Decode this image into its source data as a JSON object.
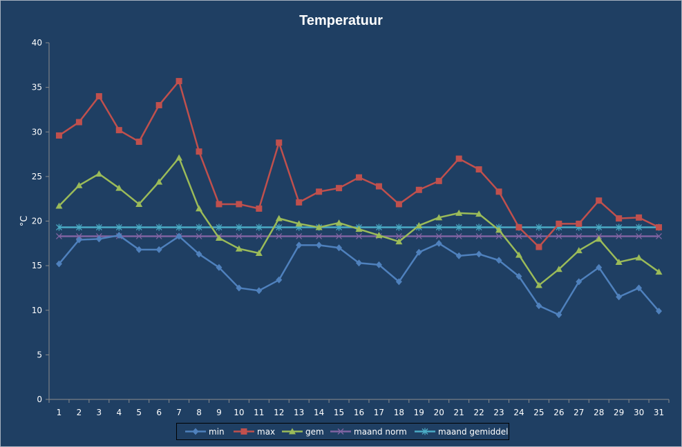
{
  "chart_data": {
    "type": "line",
    "title": "Temperatuur",
    "xlabel": "",
    "ylabel": "°C",
    "ylim": [
      0,
      40
    ],
    "yticks": [
      0,
      5,
      10,
      15,
      20,
      25,
      30,
      35,
      40
    ],
    "x": [
      "1",
      "2",
      "3",
      "4",
      "5",
      "6",
      "7",
      "8",
      "9",
      "10",
      "11",
      "12",
      "13",
      "14",
      "15",
      "16",
      "17",
      "18",
      "19",
      "20",
      "21",
      "22",
      "23",
      "24",
      "25",
      "26",
      "27",
      "28",
      "29",
      "30",
      "31"
    ],
    "grid": false,
    "legend_position": "bottom",
    "series": [
      {
        "name": "min",
        "color": "#4f81bd",
        "marker": "diamond",
        "values": [
          15.2,
          17.9,
          18.0,
          18.4,
          16.8,
          16.8,
          18.3,
          16.3,
          14.8,
          12.5,
          12.2,
          13.4,
          17.3,
          17.3,
          17.0,
          15.3,
          15.1,
          13.2,
          16.5,
          17.5,
          16.1,
          16.3,
          15.6,
          13.8,
          10.5,
          9.5,
          13.2,
          14.8,
          11.5,
          12.5,
          9.9
        ]
      },
      {
        "name": "max",
        "color": "#c0504d",
        "marker": "square",
        "values": [
          29.6,
          31.1,
          34.0,
          30.2,
          28.9,
          33.0,
          35.7,
          27.8,
          21.9,
          21.9,
          21.4,
          28.8,
          22.1,
          23.3,
          23.7,
          24.9,
          23.9,
          21.9,
          23.5,
          24.5,
          27.0,
          25.8,
          23.3,
          19.3,
          17.1,
          19.7,
          19.7,
          22.3,
          20.3,
          20.4,
          19.3
        ]
      },
      {
        "name": "gem",
        "color": "#9bbb59",
        "marker": "triangle",
        "values": [
          21.7,
          24.0,
          25.3,
          23.7,
          21.9,
          24.4,
          27.1,
          21.4,
          18.1,
          16.9,
          16.4,
          20.3,
          19.7,
          19.3,
          19.8,
          19.1,
          18.4,
          17.7,
          19.5,
          20.4,
          20.9,
          20.8,
          19.0,
          16.2,
          12.8,
          14.6,
          16.7,
          18.0,
          15.4,
          15.9,
          14.3
        ]
      },
      {
        "name": "maand norm",
        "color": "#8064a2",
        "marker": "x",
        "values": [
          18.3,
          18.3,
          18.3,
          18.3,
          18.3,
          18.3,
          18.3,
          18.3,
          18.3,
          18.3,
          18.3,
          18.3,
          18.3,
          18.3,
          18.3,
          18.3,
          18.3,
          18.3,
          18.3,
          18.3,
          18.3,
          18.3,
          18.3,
          18.3,
          18.3,
          18.3,
          18.3,
          18.3,
          18.3,
          18.3,
          18.3
        ]
      },
      {
        "name": "maand gemiddelde",
        "color": "#4bacc6",
        "marker": "star",
        "values": [
          19.3,
          19.3,
          19.3,
          19.3,
          19.3,
          19.3,
          19.3,
          19.3,
          19.3,
          19.3,
          19.3,
          19.3,
          19.3,
          19.3,
          19.3,
          19.3,
          19.3,
          19.3,
          19.3,
          19.3,
          19.3,
          19.3,
          19.3,
          19.3,
          19.3,
          19.3,
          19.3,
          19.3,
          19.3,
          19.3,
          19.3
        ]
      }
    ]
  }
}
